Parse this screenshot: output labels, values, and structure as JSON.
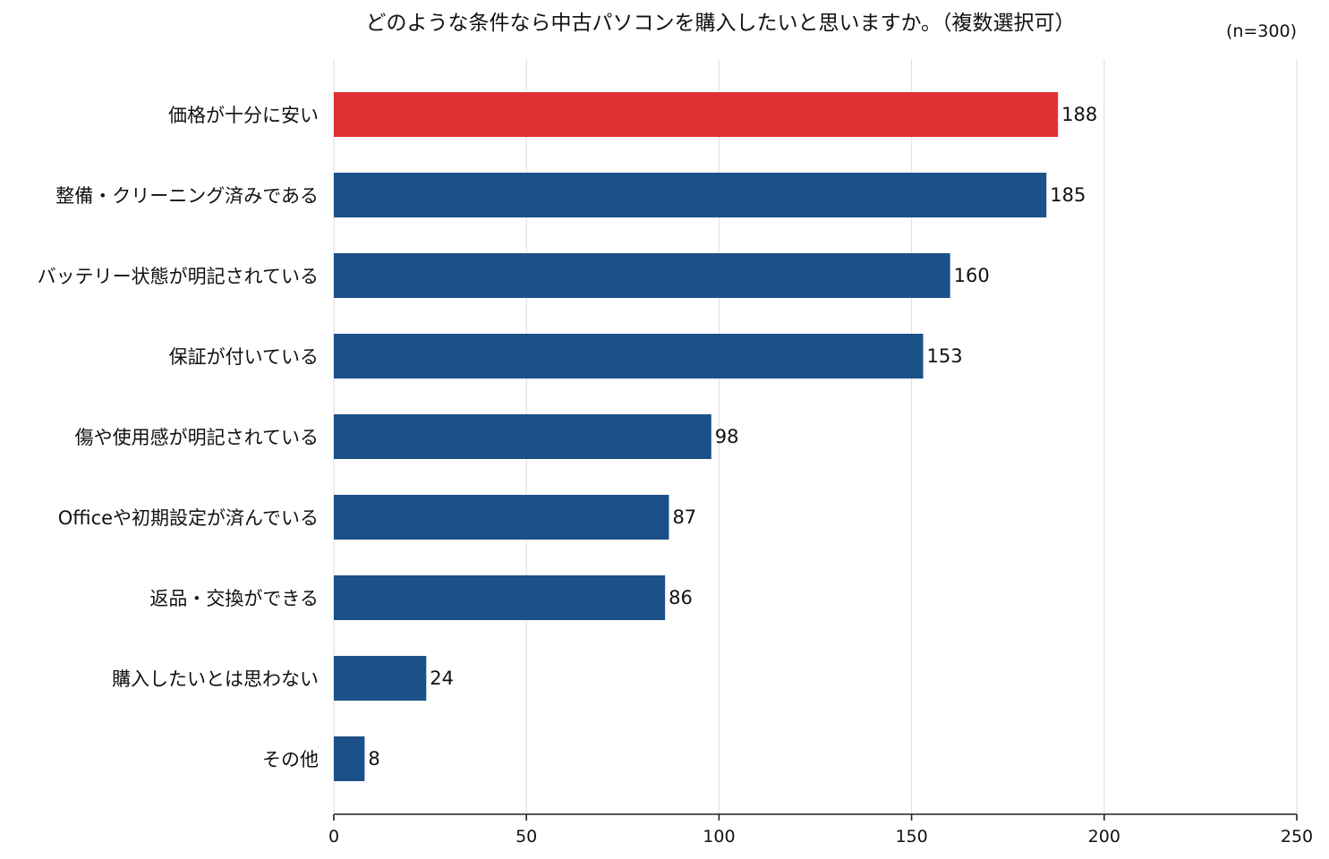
{
  "chart_data": {
    "type": "bar",
    "orientation": "horizontal",
    "title": "どのような条件なら中古パソコンを購入したいと思いますか。（複数選択可）",
    "note": "(n=300)",
    "categories": [
      "価格が十分に安い",
      "整備・クリーニング済みである",
      "バッテリー状態が明記されている",
      "保証が付いている",
      "傷や使用感が明記されている",
      "Officeや初期設定が済んでいる",
      "返品・交換ができる",
      "購入したいとは思わない",
      "その他"
    ],
    "values": [
      188,
      185,
      160,
      153,
      98,
      87,
      86,
      24,
      8
    ],
    "value_labels": [
      "188",
      "185",
      "160",
      "153",
      "98",
      "87",
      "86",
      "24",
      "8"
    ],
    "xlim": [
      0,
      250
    ],
    "xticks": [
      0,
      50,
      100,
      150,
      200,
      250
    ],
    "xtick_labels": [
      "0",
      "50",
      "100",
      "150",
      "200",
      "250"
    ],
    "grid": "vertical",
    "highlight_index": 0,
    "colors": {
      "bar": "#1c5089",
      "highlight": "#de3032",
      "grid": "#e3e3e3",
      "axis": "#222222"
    }
  }
}
